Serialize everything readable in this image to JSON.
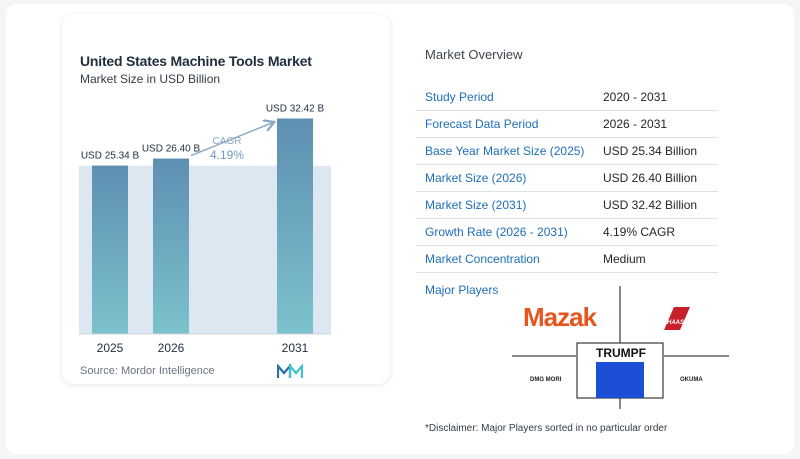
{
  "chart_card": {
    "title": "United States Machine Tools Market",
    "subtitle": "Market Size in USD Billion",
    "source": "Source:  Mordor Intelligence"
  },
  "chart_data": {
    "type": "bar",
    "title": "United States Machine Tools Market",
    "subtitle": "Market Size in USD Billion",
    "categories": [
      "2025",
      "2026",
      "2031"
    ],
    "values": [
      25.34,
      26.4,
      32.42
    ],
    "data_labels": [
      "USD 25.34 B",
      "USD 26.40 B",
      "USD 32.42 B"
    ],
    "ylim": [
      0,
      34
    ],
    "reference_line_value": 25.34,
    "cagr_label": "CAGR",
    "cagr_value": "4.19%",
    "bar_color": "#5e8fb2",
    "bar_color_bottom": "#7cc2cc",
    "band_color": "#dce7f1",
    "arrow_color": "#8aa9c2"
  },
  "overview": {
    "title": "Market Overview",
    "rows": [
      {
        "label": "Study Period",
        "value": "2020 - 2031"
      },
      {
        "label": "Forecast Data Period",
        "value": "2026 - 2031"
      },
      {
        "label": "Base Year Market Size (2025)",
        "value": "USD 25.34 Billion"
      },
      {
        "label": "Market Size (2026)",
        "value": "USD 26.40 Billion"
      },
      {
        "label": "Market Size (2031)",
        "value": "USD 32.42 Billion"
      },
      {
        "label": "Growth Rate (2026 - 2031)",
        "value": "4.19% CAGR"
      },
      {
        "label": "Market Concentration",
        "value": "Medium"
      }
    ],
    "players_label": "Major Players",
    "players": {
      "mazak": "Mazak",
      "haas": "HAAS",
      "trumpf": "TRUMPF",
      "dmg_mori": "DMG MORI",
      "okuma": "OKUMA"
    },
    "disclaimer": "*Disclaimer: Major Players sorted in no particular order"
  },
  "colors": {
    "accent_blue": "#1e6fb8",
    "mazak_orange": "#e8541d",
    "haas_red": "#c8202b",
    "trumpf_blue": "#1a4fd6"
  }
}
